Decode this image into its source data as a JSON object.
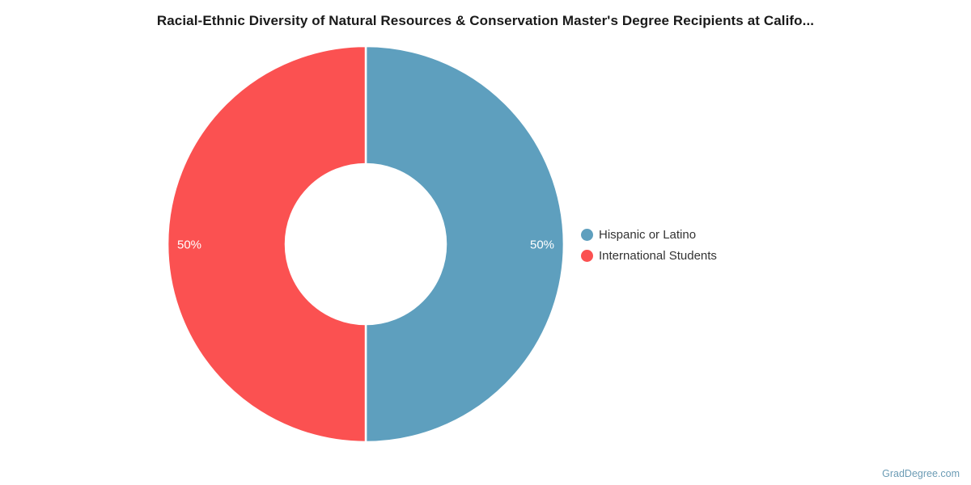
{
  "title": "Racial-Ethnic Diversity of Natural Resources & Conservation Master's Degree Recipients at Califo...",
  "watermark": "GradDegree.com",
  "colors": {
    "slice_blue": "#5e9fbe",
    "slice_red": "#fb5151",
    "slice_divider": "#ffffff",
    "slice_label_text": "#ffffff",
    "title_text": "#1a1a1a",
    "legend_text": "#333333",
    "watermark_text": "#6c9cb5",
    "background": "#ffffff"
  },
  "chart_data": {
    "type": "pie",
    "subtype": "donut",
    "title": "Racial-Ethnic Diversity of Natural Resources & Conservation Master's Degree Recipients at Califo...",
    "categories": [
      "Hispanic or Latino",
      "International Students"
    ],
    "values": [
      50,
      50
    ],
    "unit": "%",
    "slice_labels": [
      "50%",
      "50%"
    ],
    "slice_colors": [
      "#5e9fbe",
      "#fb5151"
    ],
    "start_angle_deg": 0,
    "direction": "clockwise",
    "legend_position": "right",
    "legend": [
      {
        "label": "Hispanic or Latino",
        "color": "#5e9fbe"
      },
      {
        "label": "International Students",
        "color": "#fb5151"
      }
    ]
  }
}
